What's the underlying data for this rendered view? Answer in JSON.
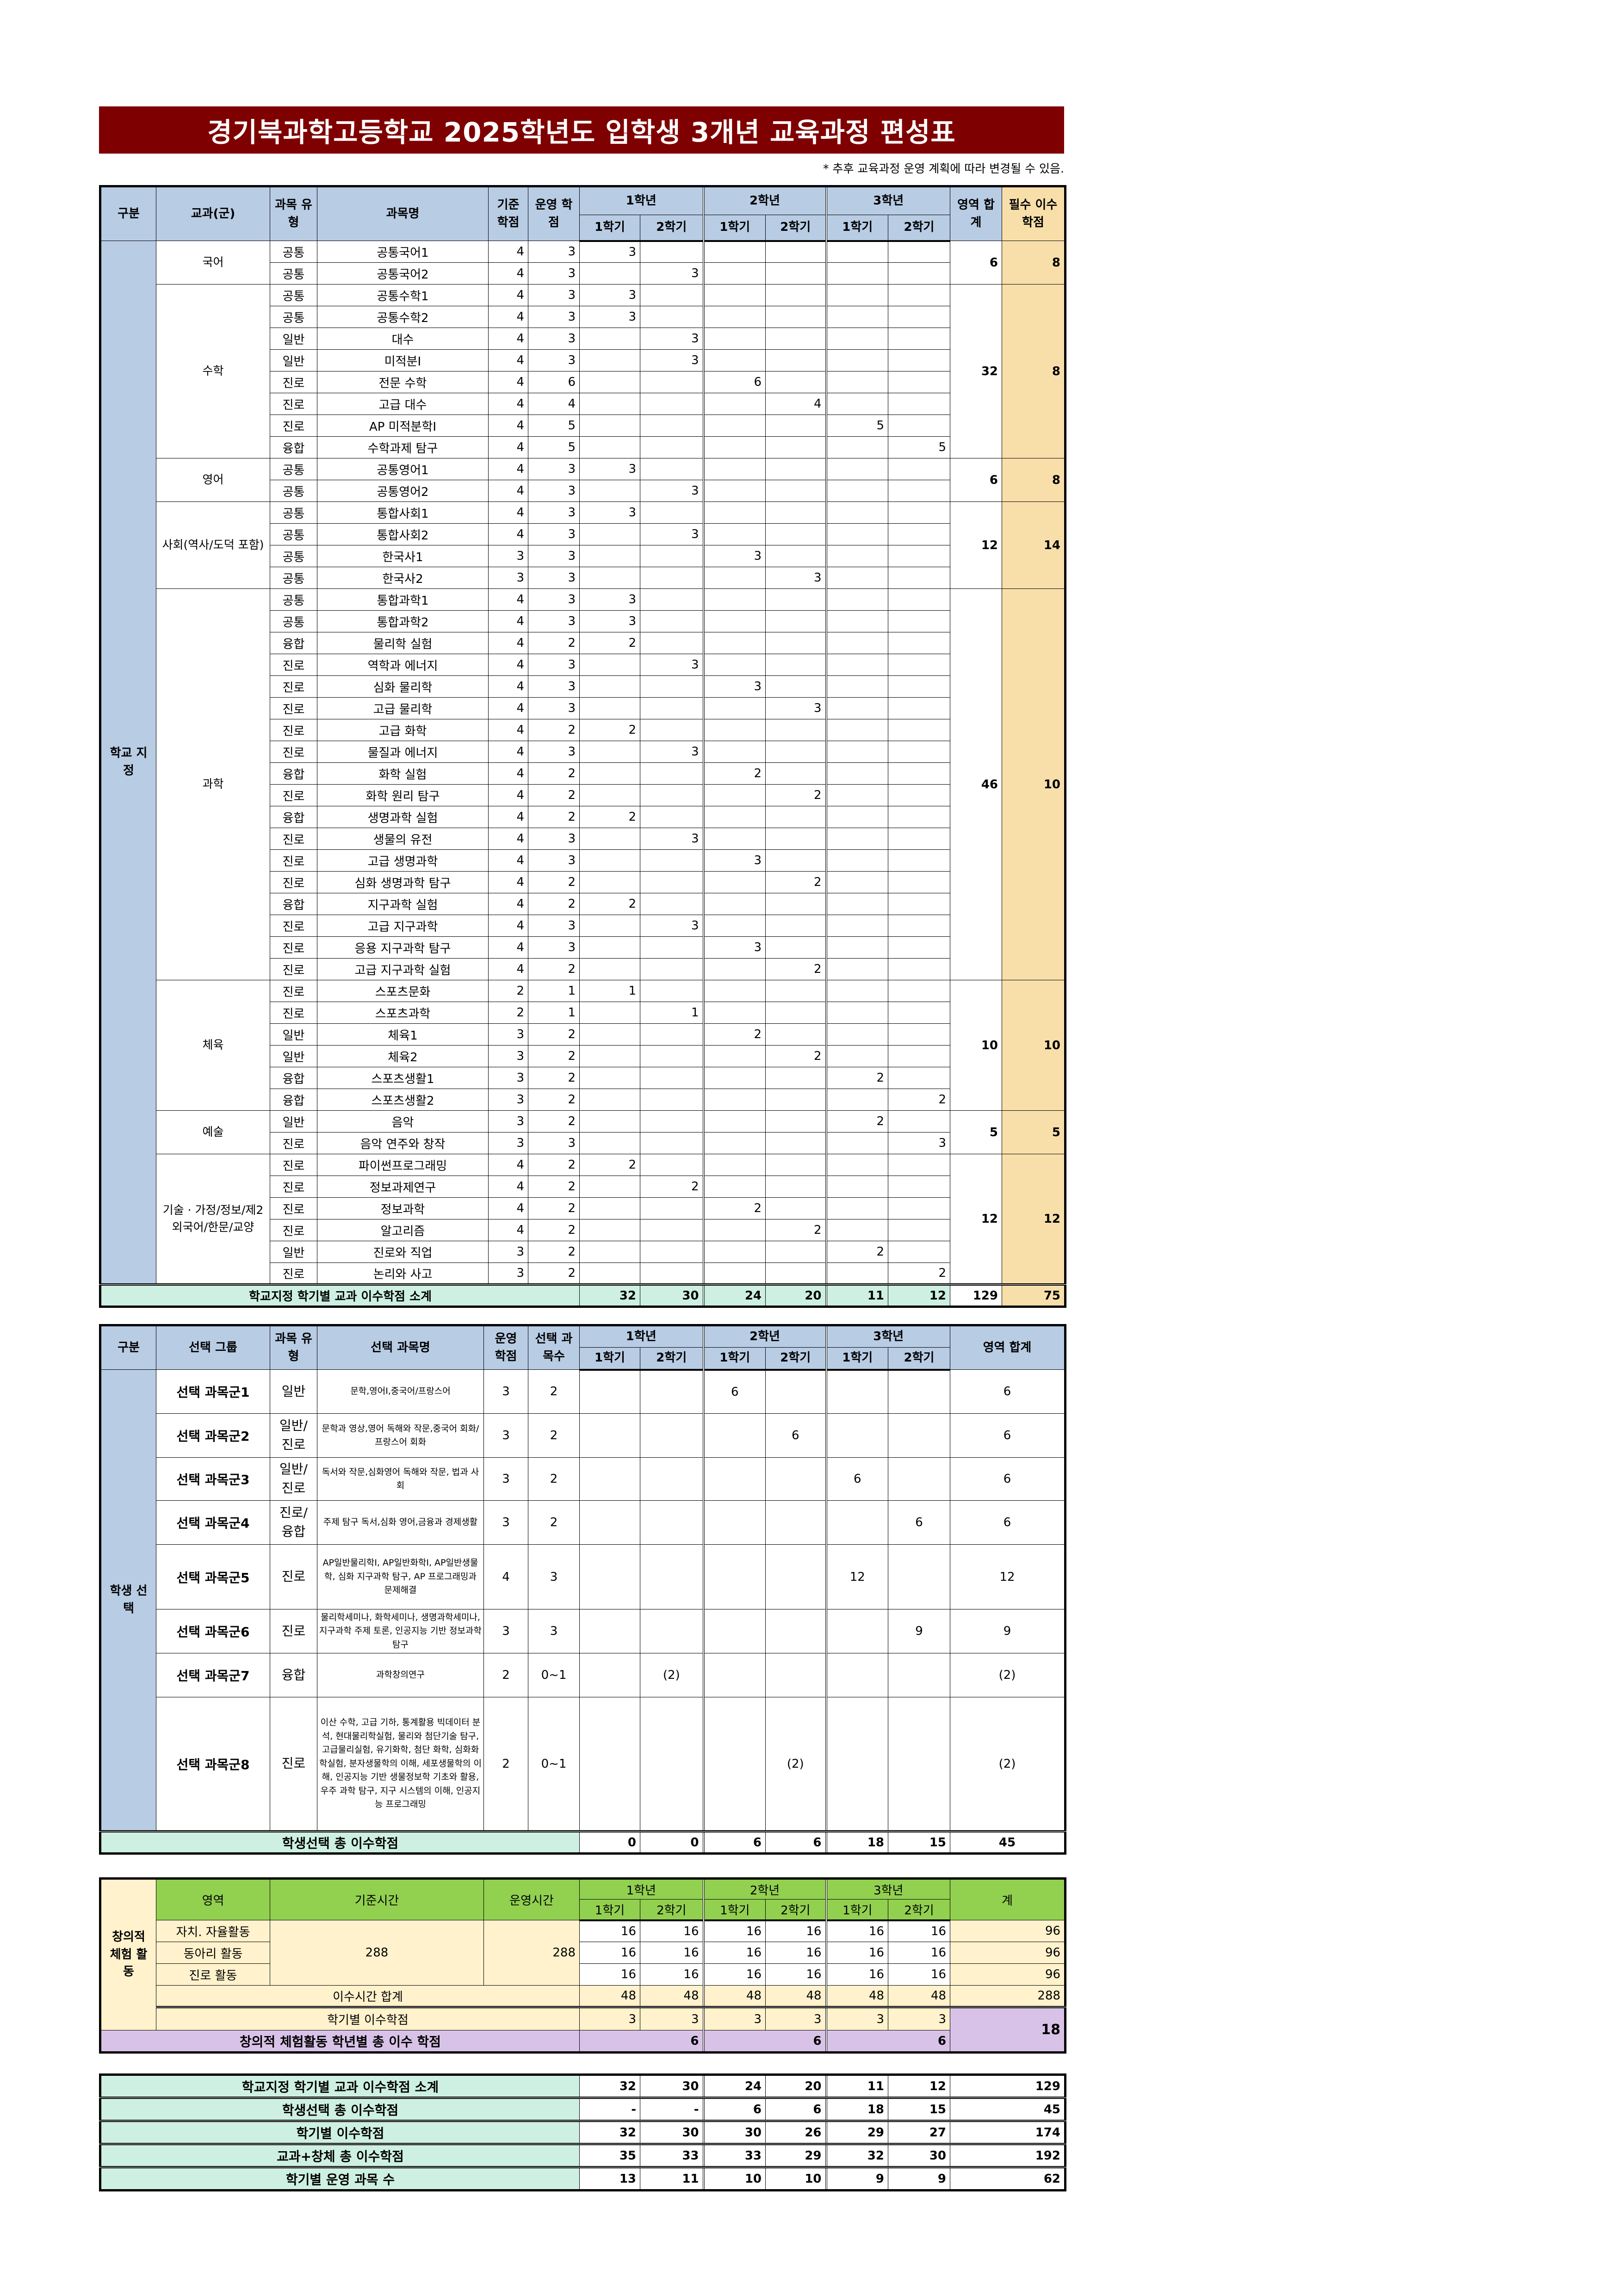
{
  "title": "경기북과학고등학교 2025학년도 입학생 3개년 교육과정 편성표",
  "note": "* 추후 교육과정 운영 계획에 따라 변경될 수 있음.",
  "colors": {
    "title_bg": "#7f0000",
    "header_blue": "#b8cce4",
    "required_col": "#f8dfaa",
    "subtotal_mint": "#cdf0e2",
    "creative_green": "#92d050",
    "creative_yellow": "#fff2cc",
    "creative_purple": "#d9c2e7"
  },
  "years": [
    "1학년",
    "2학년",
    "3학년"
  ],
  "semesters": [
    "1학기",
    "2학기"
  ],
  "school": {
    "headers": {
      "division": "구분",
      "subject_group": "교과(군)",
      "type": "과목 유형",
      "name": "과목명",
      "base": "기준 학점",
      "op": "운영 학점",
      "area_sum": "영역 합계",
      "required": "필수 이수 학점"
    },
    "division_label": "학교 지정",
    "groups": [
      {
        "name": "국어",
        "area_sum": "6",
        "required": "8",
        "rows": [
          {
            "type": "공통",
            "name": "공통국어1",
            "base": "4",
            "op": "3",
            "term": "1-1",
            "credits": "3"
          },
          {
            "type": "공통",
            "name": "공통국어2",
            "base": "4",
            "op": "3",
            "term": "1-2",
            "credits": "3"
          }
        ]
      },
      {
        "name": "수학",
        "area_sum": "32",
        "required": "8",
        "rows": [
          {
            "type": "공통",
            "name": "공통수학1",
            "base": "4",
            "op": "3",
            "term": "1-1",
            "credits": "3"
          },
          {
            "type": "공통",
            "name": "공통수학2",
            "base": "4",
            "op": "3",
            "term": "1-1",
            "credits": "3"
          },
          {
            "type": "일반",
            "name": "대수",
            "base": "4",
            "op": "3",
            "term": "1-2",
            "credits": "3"
          },
          {
            "type": "일반",
            "name": "미적분Ⅰ",
            "base": "4",
            "op": "3",
            "term": "1-2",
            "credits": "3"
          },
          {
            "type": "진로",
            "name": "전문 수학",
            "base": "4",
            "op": "6",
            "term": "2-1",
            "credits": "6"
          },
          {
            "type": "진로",
            "name": "고급 대수",
            "base": "4",
            "op": "4",
            "term": "2-2",
            "credits": "4"
          },
          {
            "type": "진로",
            "name": "AP 미적분학I",
            "base": "4",
            "op": "5",
            "term": "3-1",
            "credits": "5"
          },
          {
            "type": "융합",
            "name": "수학과제 탐구",
            "base": "4",
            "op": "5",
            "term": "3-2",
            "credits": "5"
          }
        ]
      },
      {
        "name": "영어",
        "area_sum": "6",
        "required": "8",
        "rows": [
          {
            "type": "공통",
            "name": "공통영어1",
            "base": "4",
            "op": "3",
            "term": "1-1",
            "credits": "3"
          },
          {
            "type": "공통",
            "name": "공통영어2",
            "base": "4",
            "op": "3",
            "term": "1-2",
            "credits": "3"
          }
        ]
      },
      {
        "name": "사회(역사/도덕 포함)",
        "area_sum": "12",
        "required": "14",
        "rows": [
          {
            "type": "공통",
            "name": "통합사회1",
            "base": "4",
            "op": "3",
            "term": "1-1",
            "credits": "3"
          },
          {
            "type": "공통",
            "name": "통합사회2",
            "base": "4",
            "op": "3",
            "term": "1-2",
            "credits": "3"
          },
          {
            "type": "공통",
            "name": "한국사1",
            "base": "3",
            "op": "3",
            "term": "2-1",
            "credits": "3"
          },
          {
            "type": "공통",
            "name": "한국사2",
            "base": "3",
            "op": "3",
            "term": "2-2",
            "credits": "3"
          }
        ]
      },
      {
        "name": "과학",
        "area_sum": "46",
        "required": "10",
        "rows": [
          {
            "type": "공통",
            "name": "통합과학1",
            "base": "4",
            "op": "3",
            "term": "1-1",
            "credits": "3"
          },
          {
            "type": "공통",
            "name": "통합과학2",
            "base": "4",
            "op": "3",
            "term": "1-1",
            "credits": "3"
          },
          {
            "type": "융합",
            "name": "물리학 실험",
            "base": "4",
            "op": "2",
            "term": "1-1",
            "credits": "2"
          },
          {
            "type": "진로",
            "name": "역학과 에너지",
            "base": "4",
            "op": "3",
            "term": "1-2",
            "credits": "3"
          },
          {
            "type": "진로",
            "name": "심화 물리학",
            "base": "4",
            "op": "3",
            "term": "2-1",
            "credits": "3"
          },
          {
            "type": "진로",
            "name": "고급 물리학",
            "base": "4",
            "op": "3",
            "term": "2-2",
            "credits": "3"
          },
          {
            "type": "진로",
            "name": "고급 화학",
            "base": "4",
            "op": "2",
            "term": "1-1",
            "credits": "2"
          },
          {
            "type": "진로",
            "name": "물질과 에너지",
            "base": "4",
            "op": "3",
            "term": "1-2",
            "credits": "3"
          },
          {
            "type": "융합",
            "name": "화학 실험",
            "base": "4",
            "op": "2",
            "term": "2-1",
            "credits": "2"
          },
          {
            "type": "진로",
            "name": "화학 원리 탐구",
            "base": "4",
            "op": "2",
            "term": "2-2",
            "credits": "2"
          },
          {
            "type": "융합",
            "name": "생명과학 실험",
            "base": "4",
            "op": "2",
            "term": "1-1",
            "credits": "2"
          },
          {
            "type": "진로",
            "name": "생물의 유전",
            "base": "4",
            "op": "3",
            "term": "1-2",
            "credits": "3"
          },
          {
            "type": "진로",
            "name": "고급 생명과학",
            "base": "4",
            "op": "3",
            "term": "2-1",
            "credits": "3"
          },
          {
            "type": "진로",
            "name": "심화 생명과학 탐구",
            "base": "4",
            "op": "2",
            "term": "2-2",
            "credits": "2"
          },
          {
            "type": "융합",
            "name": "지구과학 실험",
            "base": "4",
            "op": "2",
            "term": "1-1",
            "credits": "2"
          },
          {
            "type": "진로",
            "name": "고급 지구과학",
            "base": "4",
            "op": "3",
            "term": "1-2",
            "credits": "3"
          },
          {
            "type": "진로",
            "name": "응용 지구과학 탐구",
            "base": "4",
            "op": "3",
            "term": "2-1",
            "credits": "3"
          },
          {
            "type": "진로",
            "name": "고급 지구과학 실험",
            "base": "4",
            "op": "2",
            "term": "2-2",
            "credits": "2"
          }
        ]
      },
      {
        "name": "체육",
        "area_sum": "10",
        "required": "10",
        "rows": [
          {
            "type": "진로",
            "name": "스포츠문화",
            "base": "2",
            "op": "1",
            "term": "1-1",
            "credits": "1"
          },
          {
            "type": "진로",
            "name": "스포츠과학",
            "base": "2",
            "op": "1",
            "term": "1-2",
            "credits": "1"
          },
          {
            "type": "일반",
            "name": "체육1",
            "base": "3",
            "op": "2",
            "term": "2-1",
            "credits": "2"
          },
          {
            "type": "일반",
            "name": "체육2",
            "base": "3",
            "op": "2",
            "term": "2-2",
            "credits": "2"
          },
          {
            "type": "융합",
            "name": "스포츠생활1",
            "base": "3",
            "op": "2",
            "term": "3-1",
            "credits": "2"
          },
          {
            "type": "융합",
            "name": "스포츠생활2",
            "base": "3",
            "op": "2",
            "term": "3-2",
            "credits": "2"
          }
        ]
      },
      {
        "name": "예술",
        "area_sum": "5",
        "required": "5",
        "rows": [
          {
            "type": "일반",
            "name": "음악",
            "base": "3",
            "op": "2",
            "term": "3-1",
            "credits": "2"
          },
          {
            "type": "진로",
            "name": "음악 연주와 창작",
            "base": "3",
            "op": "3",
            "term": "3-2",
            "credits": "3"
          }
        ]
      },
      {
        "name": "기술 · 가정/정보/제2외국어/한문/교양",
        "area_sum": "12",
        "required": "12",
        "rows": [
          {
            "type": "진로",
            "name": "파이썬프로그래밍",
            "base": "4",
            "op": "2",
            "term": "1-1",
            "credits": "2"
          },
          {
            "type": "진로",
            "name": "정보과제연구",
            "base": "4",
            "op": "2",
            "term": "1-2",
            "credits": "2"
          },
          {
            "type": "진로",
            "name": "정보과학",
            "base": "4",
            "op": "2",
            "term": "2-1",
            "credits": "2"
          },
          {
            "type": "진로",
            "name": "알고리즘",
            "base": "4",
            "op": "2",
            "term": "2-2",
            "credits": "2"
          },
          {
            "type": "일반",
            "name": "진로와 직업",
            "base": "3",
            "op": "2",
            "term": "3-1",
            "credits": "2"
          },
          {
            "type": "진로",
            "name": "논리와 사고",
            "base": "3",
            "op": "2",
            "term": "3-2",
            "credits": "2"
          }
        ]
      }
    ],
    "subtotal": {
      "label": "학교지정 학기별 교과 이수학점 소계",
      "values": [
        "32",
        "30",
        "24",
        "20",
        "11",
        "12"
      ],
      "area_sum": "129",
      "required": "75"
    }
  },
  "elective": {
    "headers": {
      "division": "구분",
      "group": "선택 그룹",
      "type": "과목 유형",
      "name": "선택 과목명",
      "op": "운영 학점",
      "count": "선택 과목수",
      "area_sum": "영역 합계"
    },
    "division_label": "학생 선택",
    "groups": [
      {
        "name": "선택 과목군1",
        "type": "일반",
        "subjects": "문학,영어Ⅰ,중국어/프랑스어",
        "op": "3",
        "count": "2",
        "term": "2-1",
        "credits": "6",
        "area_sum": "6"
      },
      {
        "name": "선택 과목군2",
        "type": "일반/ 진로",
        "subjects": "문학과 영상,영어 독해와 작문,중국어 회화/프랑스어 회화",
        "op": "3",
        "count": "2",
        "term": "2-2",
        "credits": "6",
        "area_sum": "6"
      },
      {
        "name": "선택 과목군3",
        "type": "일반/ 진로",
        "subjects": "독서와 작문,심화영어 독해와 작문, 법과 사회",
        "op": "3",
        "count": "2",
        "term": "3-1",
        "credits": "6",
        "area_sum": "6"
      },
      {
        "name": "선택 과목군4",
        "type": "진로/ 융합",
        "subjects": "주제 탐구 독서,심화 영어,금융과 경제생활",
        "op": "3",
        "count": "2",
        "term": "3-2",
        "credits": "6",
        "area_sum": "6"
      },
      {
        "name": "선택 과목군5",
        "type": "진로",
        "subjects": "AP일반물리학I, AP일반화학I, AP일반생물학, 심화 지구과학 탐구, AP 프로그래밍과 문제해결",
        "op": "4",
        "count": "3",
        "term": "3-1",
        "credits": "12",
        "area_sum": "12"
      },
      {
        "name": "선택 과목군6",
        "type": "진로",
        "subjects": "물리학세미나, 화학세미나, 생명과학세미나, 지구과학 주제 토론, 인공지능 기반 정보과학 탐구",
        "op": "3",
        "count": "3",
        "term": "3-2",
        "credits": "9",
        "area_sum": "9"
      },
      {
        "name": "선택 과목군7",
        "type": "융합",
        "subjects": "과학창의연구",
        "op": "2",
        "count": "0~1",
        "term": "1-2",
        "credits": "(2)",
        "area_sum": "(2)"
      },
      {
        "name": "선택 과목군8",
        "type": "진로",
        "subjects": "이산 수학, 고급 기하, 통계활용 빅데이터 분석, 현대물리학실험, 물리와 첨단기술 탐구, 고급물리실험, 유기화학, 첨단 화학, 심화화학실험, 분자생물학의 이해, 세포생물학의 이해, 인공지능 기반 생물정보학 기초와 활용, 우주 과학 탐구, 지구 시스템의 이해, 인공지능 프로그래밍",
        "op": "2",
        "count": "0~1",
        "term": "2-2",
        "credits": "(2)",
        "area_sum": "(2)"
      }
    ],
    "total": {
      "label": "학생선택 총 이수학점",
      "values": [
        "0",
        "0",
        "6",
        "6",
        "18",
        "15"
      ],
      "area_sum": "45"
    }
  },
  "creative": {
    "headers": {
      "label": "창의적 체험 활동",
      "area": "영역",
      "base": "기준시간",
      "op": "운영시간",
      "total": "계"
    },
    "base_hours": "288",
    "op_hours": "288",
    "activities": [
      {
        "name": "자치. 자율활동",
        "hours": [
          "16",
          "16",
          "16",
          "16",
          "16",
          "16"
        ],
        "total": "96"
      },
      {
        "name": "동아리 활동",
        "hours": [
          "16",
          "16",
          "16",
          "16",
          "16",
          "16"
        ],
        "total": "96"
      },
      {
        "name": "진로 활동",
        "hours": [
          "16",
          "16",
          "16",
          "16",
          "16",
          "16"
        ],
        "total": "96"
      }
    ],
    "hours_sum": {
      "label": "이수시간 합계",
      "values": [
        "48",
        "48",
        "48",
        "48",
        "48",
        "48"
      ],
      "total": "288"
    },
    "credits": {
      "label": "학기별 이수학점",
      "values": [
        "3",
        "3",
        "3",
        "3",
        "3",
        "3"
      ],
      "total": "18"
    },
    "year_total": {
      "label": "창의적 체험활동 학년별 총 이수 학점",
      "values": [
        "6",
        "6",
        "6"
      ]
    }
  },
  "summary": [
    {
      "label": "학교지정 학기별 교과 이수학점 소계",
      "values": [
        "32",
        "30",
        "24",
        "20",
        "11",
        "12"
      ],
      "total": "129"
    },
    {
      "label": "학생선택 총 이수학점",
      "values": [
        "-",
        "-",
        "6",
        "6",
        "18",
        "15"
      ],
      "total": "45"
    },
    {
      "label": "학기별 이수학점",
      "values": [
        "32",
        "30",
        "30",
        "26",
        "29",
        "27"
      ],
      "total": "174"
    },
    {
      "label": "교과+창체 총 이수학점",
      "values": [
        "35",
        "33",
        "33",
        "29",
        "32",
        "30"
      ],
      "total": "192"
    },
    {
      "label": "학기별 운영 과목 수",
      "values": [
        "13",
        "11",
        "10",
        "10",
        "9",
        "9"
      ],
      "total": "62"
    }
  ]
}
